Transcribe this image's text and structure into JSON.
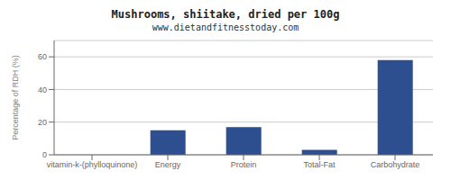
{
  "chart_data": {
    "type": "bar",
    "title": "Mushrooms, shiitake, dried per 100g",
    "subtitle": "www.dietandfitnesstoday.com",
    "categories": [
      "vitamin-k-(phylloquinone)",
      "Energy",
      "Protein",
      "Total-Fat",
      "Carbohydrate"
    ],
    "values": [
      0,
      15,
      17,
      3,
      58
    ],
    "color": "#2e4f8f",
    "ylabel": "Percentage of RDH (%)",
    "ylim": [
      0,
      70
    ],
    "yticks": [
      0,
      20,
      40,
      60
    ],
    "grid": true
  }
}
